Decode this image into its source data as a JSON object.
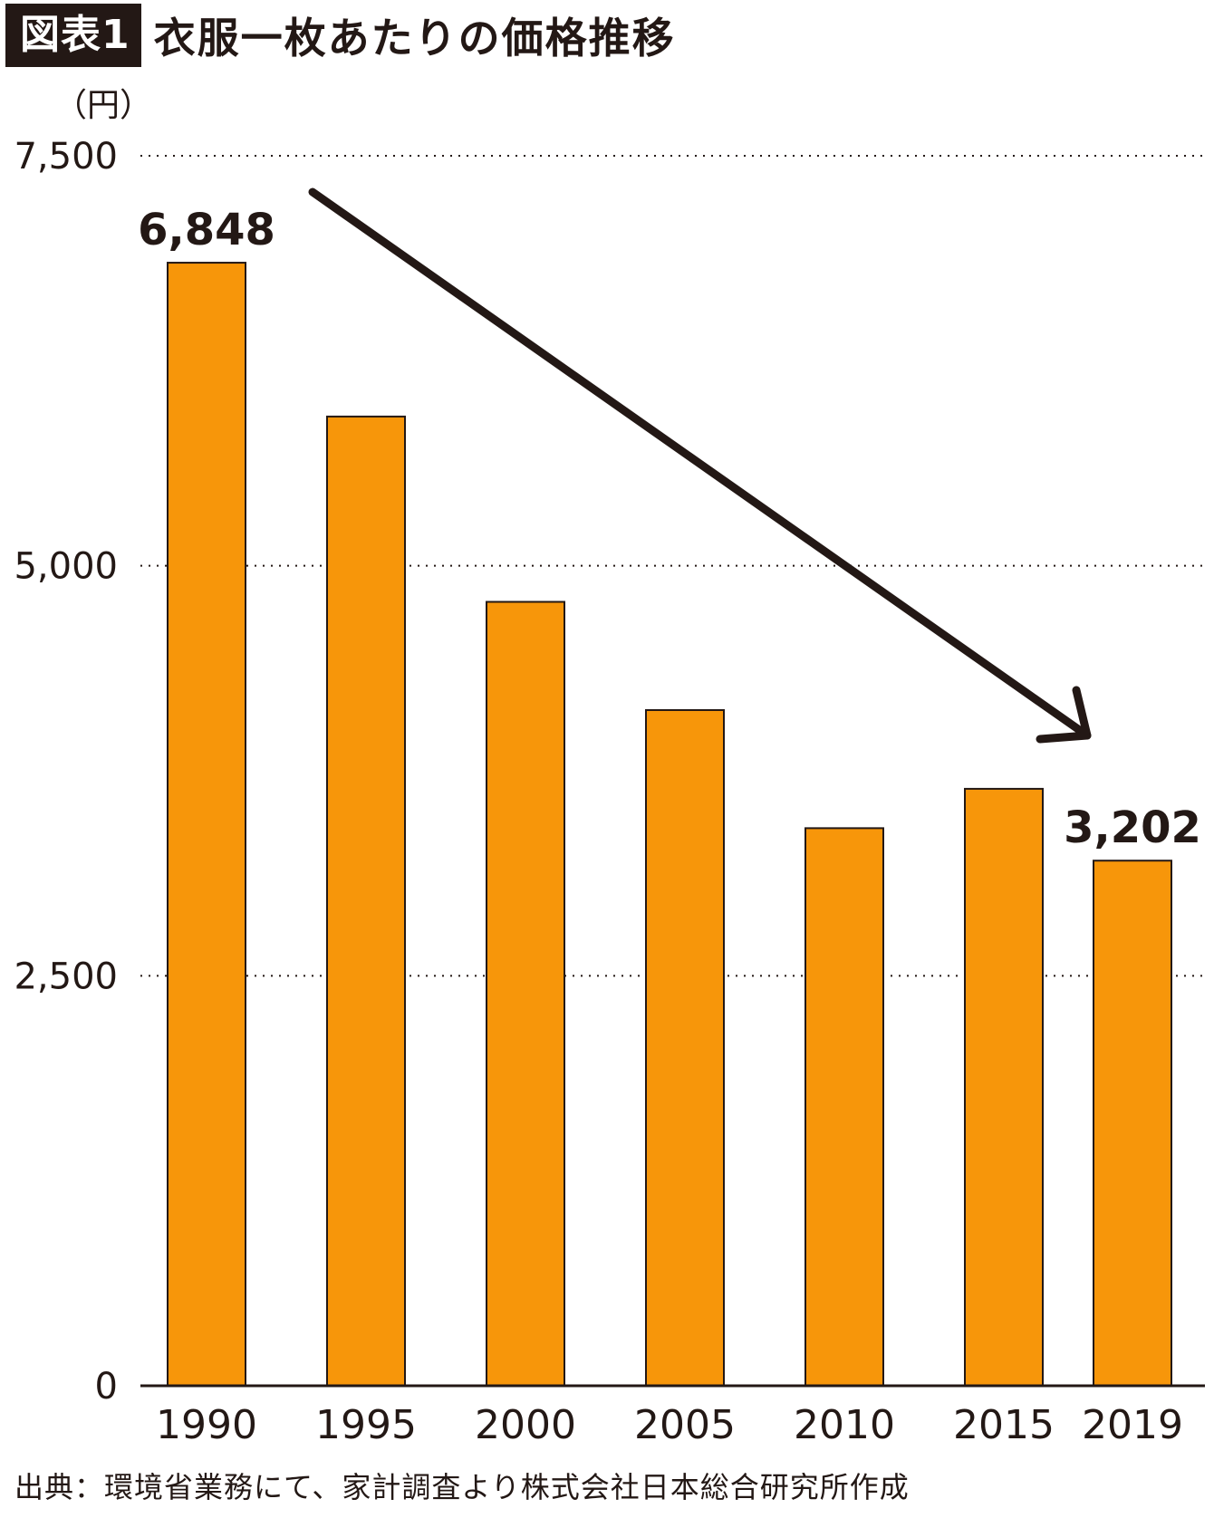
{
  "header": {
    "badge": "図表1",
    "title": "衣服一枚あたりの価格推移"
  },
  "chart_data": {
    "type": "bar",
    "unit_label": "（円）",
    "categories": [
      "1990",
      "1995",
      "2000",
      "2005",
      "2010",
      "2015",
      "2019"
    ],
    "values": [
      6848,
      5910,
      4780,
      4120,
      3400,
      3640,
      3202
    ],
    "data_labels": [
      {
        "index": 0,
        "text": "6,848"
      },
      {
        "index": 6,
        "text": "3,202"
      }
    ],
    "ylim": [
      0,
      7500
    ],
    "yticks": [
      {
        "value": 0,
        "label": "0"
      },
      {
        "value": 2500,
        "label": "2,500"
      },
      {
        "value": 5000,
        "label": "5,000"
      },
      {
        "value": 7500,
        "label": "7,500"
      }
    ],
    "gridlines": "dotted",
    "bar_color": "#F7960A",
    "annotation": {
      "type": "arrow",
      "description": "downward trend",
      "from_category": "1990",
      "to_category": "2019"
    }
  },
  "source": "出典：環境省業務にて、家計調査より株式会社日本総合研究所作成"
}
